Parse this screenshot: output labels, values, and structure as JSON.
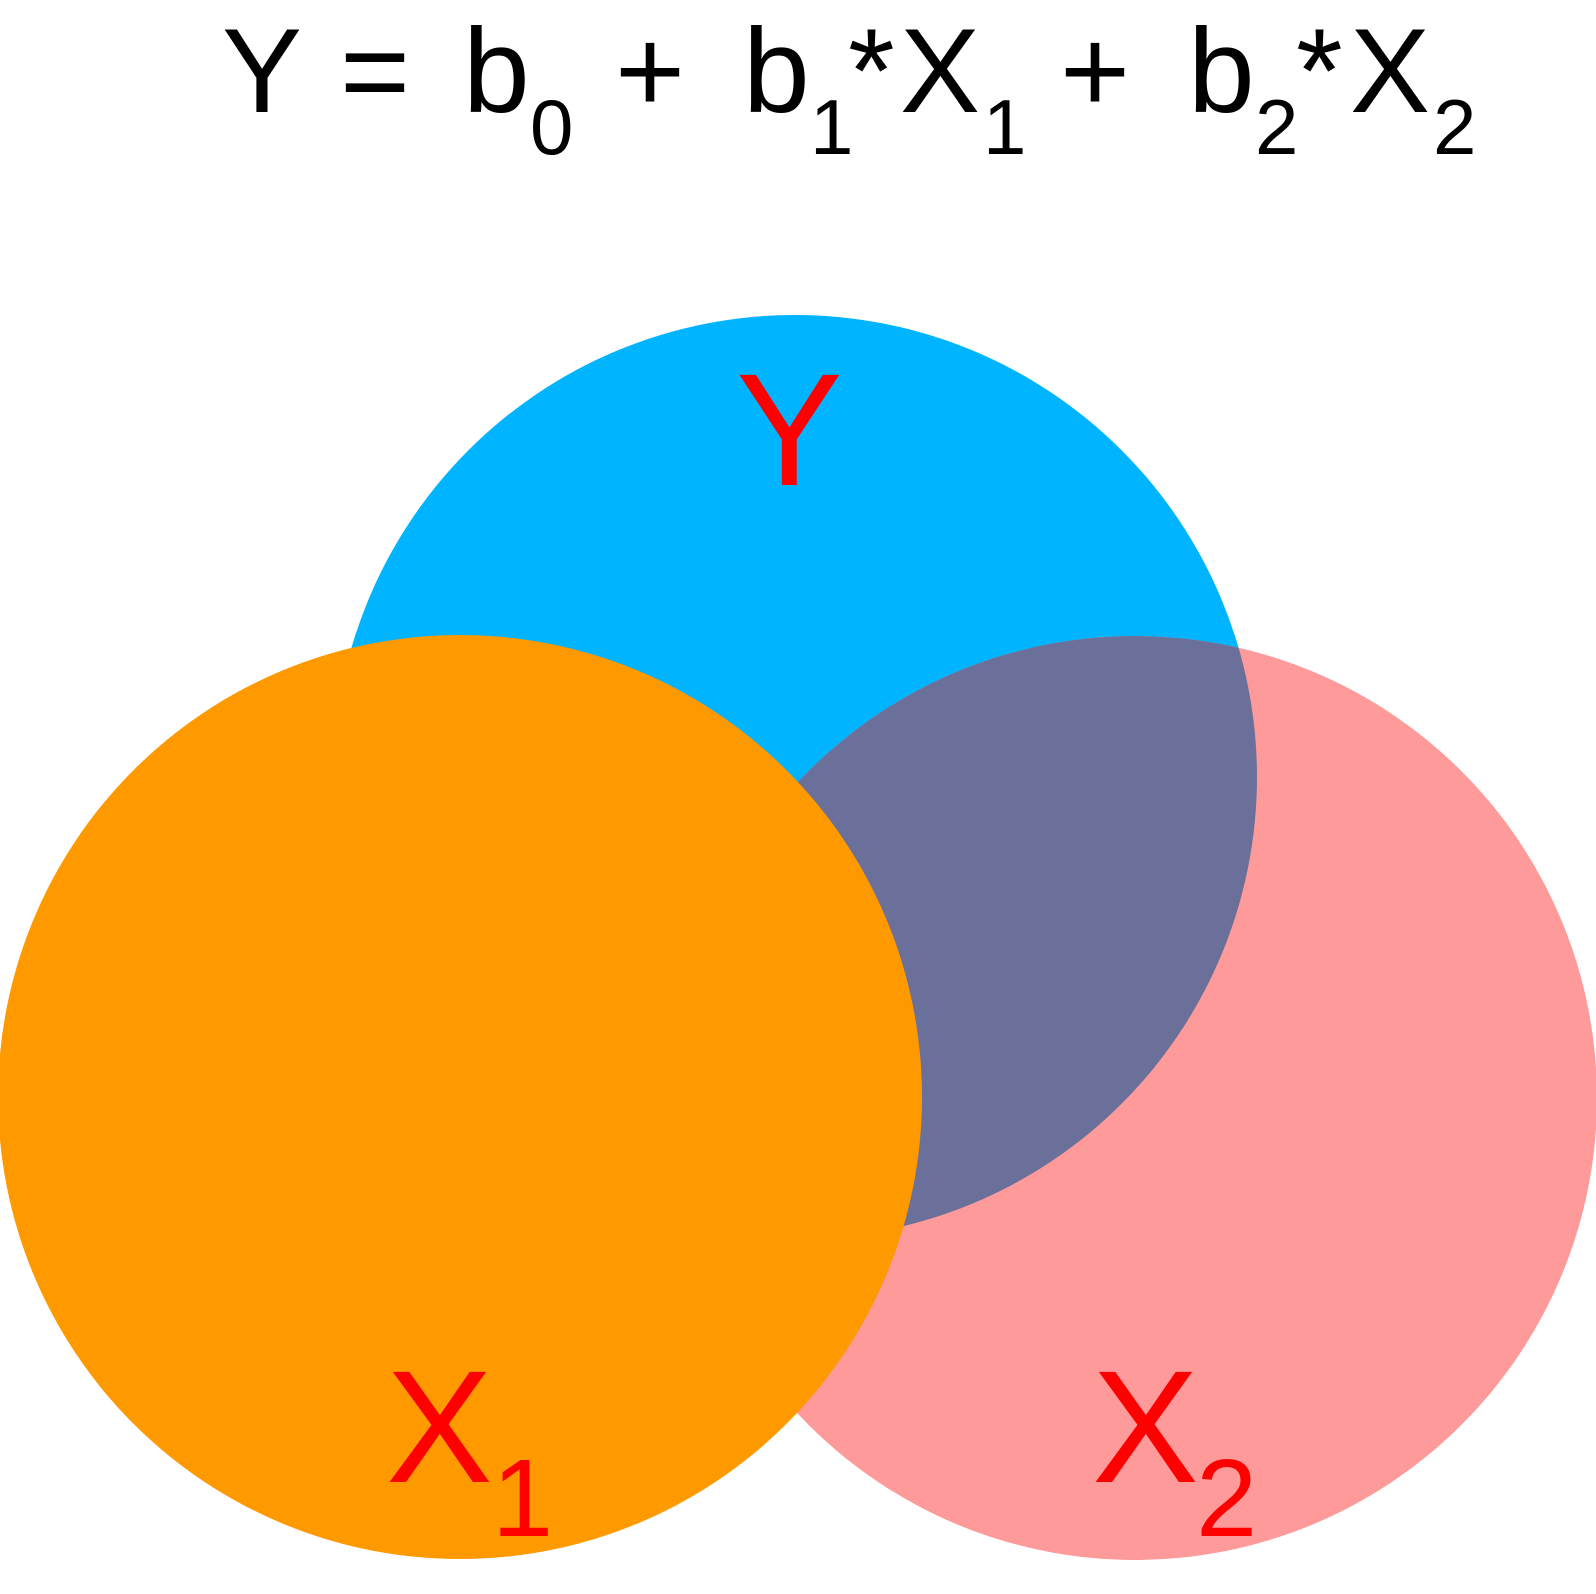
{
  "equation": {
    "y": "Y",
    "eq": "=",
    "b": "b",
    "b0_sub": "0",
    "plus": "+",
    "b1_sub": "1",
    "star": "*",
    "x": "X",
    "x1_sub": "1",
    "b2_sub": "2",
    "x2_sub": "2"
  },
  "venn": {
    "y_label": "Y",
    "x1_label": "X",
    "x1_sub": "1",
    "x2_label": "X",
    "x2_sub": "2"
  },
  "colors": {
    "y_circle": "#00B4FF",
    "x1_circle": "#FF9900",
    "x2_circle": "#FF9A9A",
    "y_x2_overlap": "#6A7099",
    "labels": "#FF0000",
    "text": "#000000"
  }
}
